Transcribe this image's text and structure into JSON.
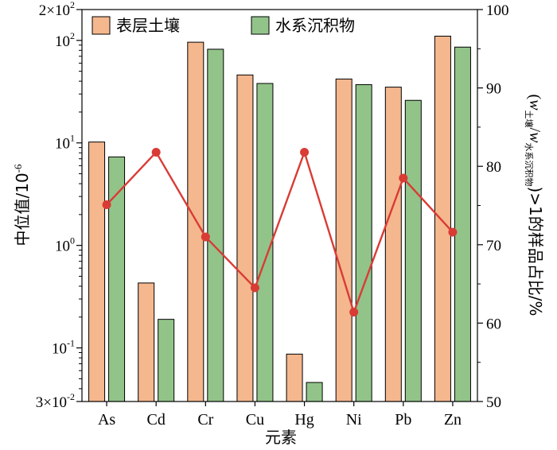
{
  "chart_data": {
    "type": "bar",
    "categories": [
      "As",
      "Cd",
      "Cr",
      "Cu",
      "Hg",
      "Ni",
      "Pb",
      "Zn"
    ],
    "xlabel": "元素",
    "ylabel_left": {
      "main": "中位值/10",
      "sup": "-6"
    },
    "ylabel_right": {
      "open": "(",
      "w1": "w",
      "sub1": "土壤",
      "slash": "/",
      "w2": "w",
      "sub2": "水系沉积物",
      "rest": ")>1的样品占比/%"
    },
    "y_left": {
      "scale": "log",
      "range": [
        0.03,
        200
      ],
      "ticks": [
        {
          "value": 0.03,
          "base": "3×10",
          "exp": "-2"
        },
        {
          "value": 0.1,
          "base": "10",
          "exp": "-1"
        },
        {
          "value": 1,
          "base": "10",
          "exp": "0"
        },
        {
          "value": 10,
          "base": "10",
          "exp": "1"
        },
        {
          "value": 100,
          "base": "10",
          "exp": "2"
        },
        {
          "value": 200,
          "base": "2×10",
          "exp": "2"
        }
      ]
    },
    "y_right": {
      "scale": "linear",
      "range": [
        50,
        100
      ],
      "ticks": [
        "50",
        "60",
        "70",
        "80",
        "90",
        "100"
      ]
    },
    "legend_position": "top",
    "grid": false,
    "series": [
      {
        "name": "表层土壤",
        "kind": "bar",
        "axis": "left",
        "color": "#f4b78e",
        "values": [
          10.2,
          0.43,
          96,
          46,
          0.087,
          42,
          35,
          110
        ]
      },
      {
        "name": "水系沉积物",
        "kind": "bar",
        "axis": "left",
        "color": "#92c48a",
        "values": [
          7.3,
          0.19,
          82,
          38,
          0.046,
          37,
          26,
          86
        ]
      },
      {
        "kind": "line",
        "axis": "right",
        "color": "#d93b35",
        "values": [
          75.1,
          81.8,
          71.0,
          64.5,
          81.8,
          61.4,
          78.5,
          71.6
        ]
      }
    ]
  }
}
